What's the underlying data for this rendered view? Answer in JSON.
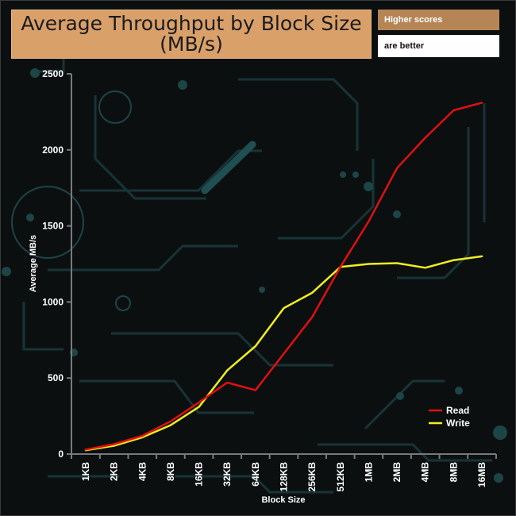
{
  "header": {
    "title_line1": "Average Throughput by Block Size",
    "title_line2": "(MB/s)",
    "badge_top": "Higher scores",
    "badge_bottom": "are better"
  },
  "colors": {
    "background": "#0c0f10",
    "circuit": "#1a3a3c",
    "axis": "#7a7a7a",
    "read": "#e01010",
    "write": "#f0ee20",
    "title_bg": "#d9a06a"
  },
  "chart_data": {
    "type": "line",
    "title": "Average Throughput by Block Size (MB/s)",
    "xlabel": "Block Size",
    "ylabel": "Average MB/s",
    "ylim": [
      0,
      2500
    ],
    "yticks": [
      0,
      500,
      1000,
      1500,
      2000,
      2500
    ],
    "categories": [
      "1KB",
      "2KB",
      "4KB",
      "8KB",
      "16KB",
      "32KB",
      "64KB",
      "128KB",
      "256KB",
      "512KB",
      "1MB",
      "2MB",
      "4MB",
      "8MB",
      "16MB"
    ],
    "series": [
      {
        "name": "Read",
        "color": "#e01010",
        "values": [
          30,
          65,
          120,
          215,
          340,
          470,
          420,
          660,
          900,
          1230,
          1530,
          1880,
          2080,
          2260,
          2310
        ]
      },
      {
        "name": "Write",
        "color": "#f0ee20",
        "values": [
          25,
          55,
          110,
          190,
          310,
          550,
          710,
          960,
          1060,
          1230,
          1250,
          1255,
          1225,
          1275,
          1300
        ]
      }
    ],
    "legend_position": "bottom-right",
    "grid": false
  }
}
